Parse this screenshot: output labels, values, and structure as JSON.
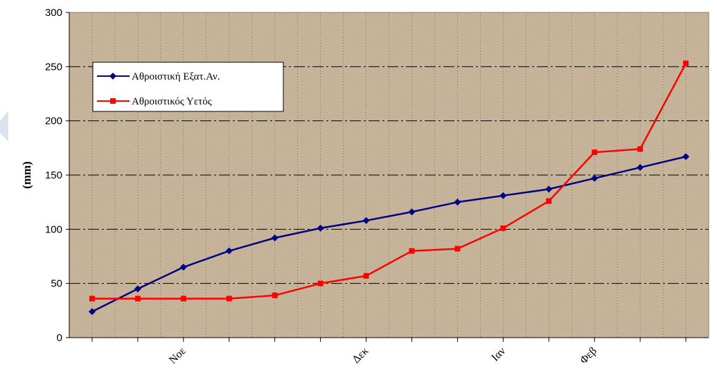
{
  "chart_data": {
    "type": "line",
    "ylabel": "(mm)",
    "ylim": [
      0,
      300
    ],
    "y_ticks": [
      "0",
      "50",
      "100",
      "150",
      "200",
      "250",
      "300"
    ],
    "x_tick_labels": [
      "Νοε",
      "Δεκ",
      "Ιαν",
      "Φεβ"
    ],
    "grid": true,
    "legend_position": "top-left",
    "series": [
      {
        "name": "Αθροιστική Εξατ.Αν.",
        "color": "#000080",
        "marker": "diamond",
        "values": [
          24,
          45,
          65,
          80,
          92,
          101,
          108,
          116,
          125,
          131,
          137,
          147,
          157,
          167
        ]
      },
      {
        "name": "Αθροιστικός Υετός",
        "color": "#ff0000",
        "marker": "square",
        "values": [
          36,
          36,
          36,
          36,
          39,
          50,
          57,
          80,
          82,
          101,
          126,
          171,
          174,
          253
        ]
      }
    ]
  }
}
